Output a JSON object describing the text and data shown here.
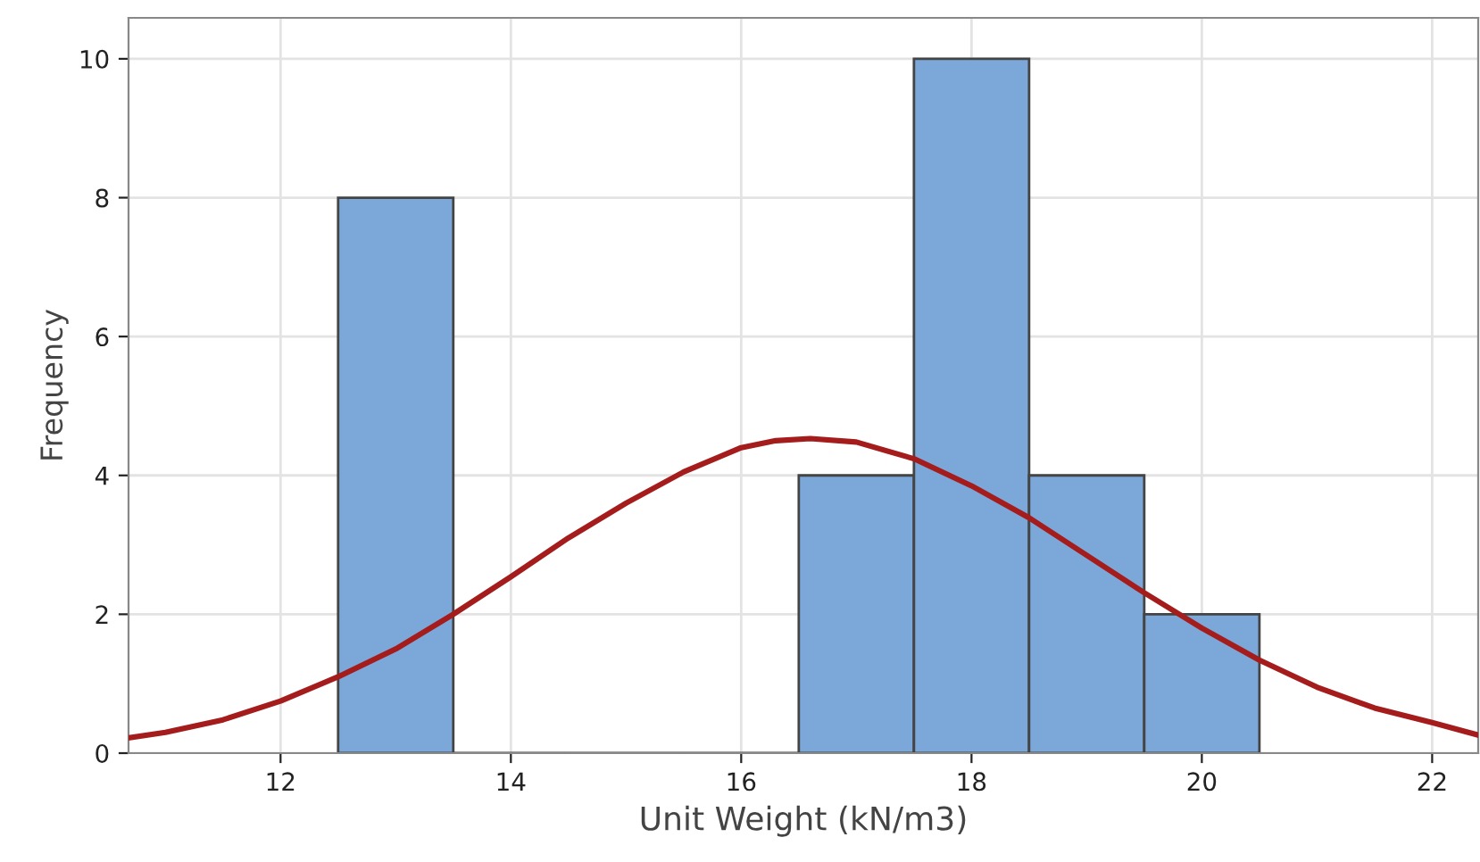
{
  "chart_data": {
    "type": "histogram",
    "xlabel": "Unit Weight (kN/m3)",
    "ylabel": "Frequency",
    "bins": [
      12.5,
      13.5,
      14.5,
      15.5,
      16.5,
      17.5,
      18.5,
      19.5,
      20.5
    ],
    "values": [
      8,
      0,
      0,
      0,
      4,
      10,
      4,
      2
    ],
    "color": "#7ba7d9",
    "series": [
      {
        "type": "line",
        "color": "#a51c1c",
        "x": [
          10.68,
          11,
          11.5,
          12,
          12.5,
          13,
          13.5,
          14,
          14.5,
          15,
          15.5,
          16,
          16.3,
          16.6,
          17,
          17.5,
          18,
          18.5,
          19,
          19.5,
          20,
          20.5,
          21,
          21.5,
          22,
          22.4
        ],
        "values": [
          0.22,
          0.3,
          0.48,
          0.75,
          1.1,
          1.5,
          2.0,
          2.54,
          3.1,
          3.6,
          4.05,
          4.4,
          4.5,
          4.53,
          4.48,
          4.24,
          3.85,
          3.39,
          2.85,
          2.31,
          1.8,
          1.34,
          0.95,
          0.65,
          0.44,
          0.26
        ]
      }
    ],
    "xlim": [
      10.68,
      22.4
    ],
    "ylim": [
      0,
      10.59
    ],
    "xticks": [
      12,
      14,
      16,
      18,
      20,
      22
    ],
    "yticks": [
      0,
      2,
      4,
      6,
      8,
      10
    ],
    "grid": true
  }
}
